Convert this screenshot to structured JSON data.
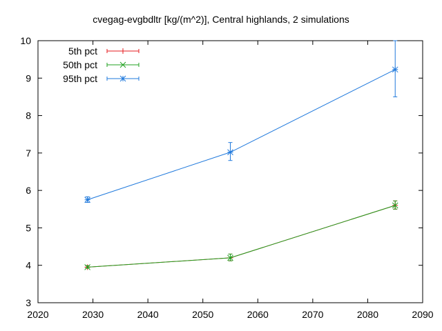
{
  "chart_data": {
    "type": "line",
    "title": "cvegag-evgbdltr [kg/(m^2)], Central highlands, 2 simulations",
    "xlabel": "",
    "ylabel": "",
    "xlim": [
      2020,
      2090
    ],
    "ylim": [
      3,
      10
    ],
    "xticks": [
      2020,
      2030,
      2040,
      2050,
      2060,
      2070,
      2080,
      2090
    ],
    "yticks": [
      3,
      4,
      5,
      6,
      7,
      8,
      9,
      10
    ],
    "x": [
      2029,
      2055,
      2085
    ],
    "legend_position": "top-left",
    "grid": false,
    "series": [
      {
        "name": "5th pct",
        "color": "#e41a1c",
        "marker": "plus",
        "values": [
          3.95,
          4.2,
          5.6
        ],
        "err_low": [
          3.92,
          4.12,
          5.5
        ],
        "err_high": [
          3.99,
          4.3,
          5.72
        ]
      },
      {
        "name": "50th pct",
        "color": "#1fa01f",
        "marker": "cross",
        "values": [
          3.95,
          4.2,
          5.6
        ],
        "err_low": [
          3.92,
          4.12,
          5.5
        ],
        "err_high": [
          3.99,
          4.3,
          5.72
        ]
      },
      {
        "name": "95th pct",
        "color": "#1e78dc",
        "marker": "star",
        "values": [
          5.75,
          7.02,
          9.23
        ],
        "err_low": [
          5.68,
          6.8,
          8.5
        ],
        "err_high": [
          5.83,
          7.28,
          10.0
        ]
      }
    ]
  }
}
